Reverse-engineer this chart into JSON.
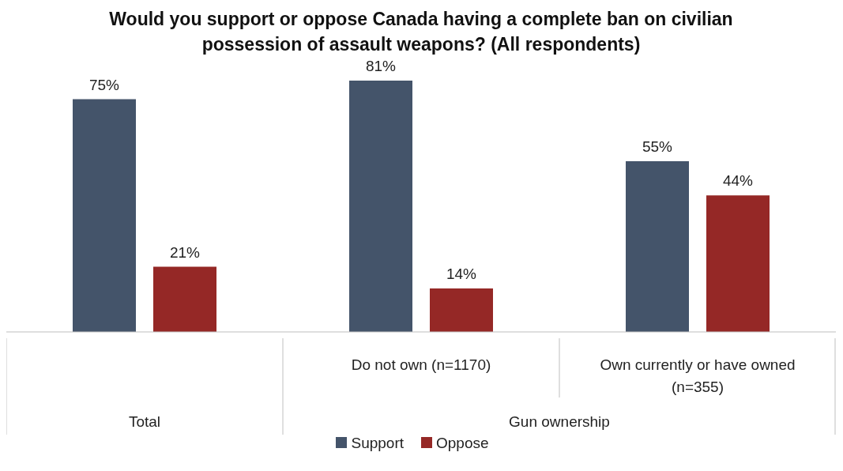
{
  "chart_data": {
    "type": "bar",
    "title": "Would you support or oppose Canada having a complete ban on civilian possession of assault weapons? (All respondents)",
    "categories": [
      null,
      "Do not own (n=1170)",
      "Own currently or have owned (n=355)"
    ],
    "annotations": [
      "Total",
      "Gun ownership"
    ],
    "series": [
      {
        "name": "Support",
        "color": "#44546a",
        "values": [
          75,
          81,
          55
        ],
        "value_labels": [
          "75%",
          "81%",
          "55%"
        ]
      },
      {
        "name": "Oppose",
        "color": "#952826",
        "values": [
          21,
          14,
          44
        ],
        "value_labels": [
          "21%",
          "14%",
          "44%"
        ]
      }
    ],
    "legend": "bottom",
    "grid": false
  }
}
